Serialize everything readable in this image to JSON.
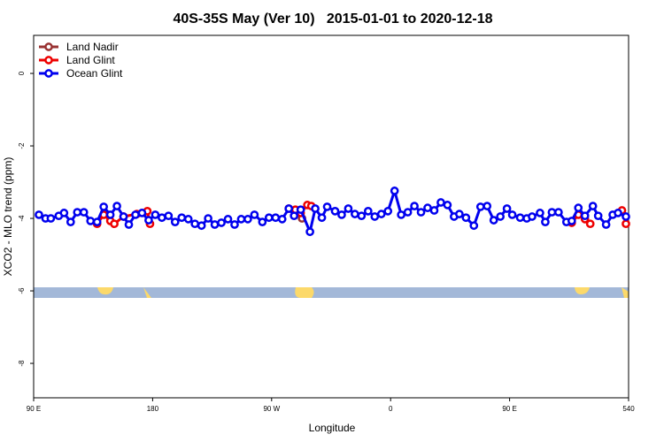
{
  "chart_data": {
    "type": "line",
    "title": "40S-35S May (Ver 10)   2015-01-01 to 2020-12-18",
    "xlabel": "Longitude",
    "ylabel": "XCO2 - MLO trend (ppm)",
    "xlim": [
      90,
      540
    ],
    "ylim": [
      -8.95,
      1.05
    ],
    "xticks": [
      {
        "value": 90,
        "label": "90 E"
      },
      180,
      {
        "value": 270,
        "label": "90 W"
      },
      {
        "value": 360,
        "label": "0"
      },
      {
        "value": 450,
        "label": "90 E"
      },
      540
    ],
    "yticks": [
      0,
      -2,
      -4,
      -6,
      -8
    ],
    "legend": "top-left",
    "series": [
      {
        "name": "Land Nadir",
        "color": "#993333",
        "x": [
          288,
          293
        ],
        "values": [
          -3.76,
          -4.0
        ]
      },
      {
        "name": "Land Glint",
        "color": "#ee0000",
        "x": [
          138,
          143,
          148,
          151,
          158,
          168,
          176,
          178,
          230,
          283,
          288,
          292,
          297,
          300,
          400,
          497,
          502,
          507,
          511,
          520,
          535,
          538
        ],
        "values": [
          -4.15,
          -3.9,
          -4.07,
          -4.15,
          -3.95,
          -3.88,
          -3.8,
          -4.15,
          null,
          -3.73,
          -3.76,
          -3.85,
          -3.63,
          -3.66,
          null,
          -4.12,
          -3.9,
          -4.02,
          -4.15,
          null,
          -3.78,
          -4.15
        ]
      },
      {
        "name": "Ocean Glint",
        "color": "#0000ee",
        "x": [
          94,
          99,
          103,
          109,
          113,
          118,
          123,
          128,
          133,
          138,
          143,
          148,
          153,
          158,
          162,
          167,
          172,
          177,
          182,
          187,
          192,
          197,
          202,
          207,
          212,
          217,
          222,
          227,
          232,
          237,
          242,
          247,
          252,
          257,
          263,
          268,
          273,
          278,
          283,
          287,
          292,
          299,
          303,
          308,
          312,
          318,
          323,
          328,
          333,
          338,
          343,
          348,
          353,
          358,
          363,
          368,
          373,
          378,
          383,
          388,
          393,
          398,
          403,
          408,
          412,
          417,
          423,
          428,
          433,
          438,
          443,
          448,
          452,
          458,
          463,
          467,
          473,
          477,
          482,
          487,
          493,
          497,
          502,
          507,
          513,
          517,
          523,
          528,
          532,
          538
        ],
        "values": [
          -3.9,
          -4.0,
          -4.0,
          -3.93,
          -3.85,
          -4.1,
          -3.83,
          -3.83,
          -4.07,
          -4.1,
          -3.68,
          -3.9,
          -3.66,
          -3.95,
          -4.17,
          -3.9,
          -3.85,
          -4.05,
          -3.9,
          -3.98,
          -3.93,
          -4.1,
          -3.98,
          -4.02,
          -4.15,
          -4.2,
          -4.0,
          -4.17,
          -4.12,
          -4.02,
          -4.17,
          -4.02,
          -4.02,
          -3.9,
          -4.1,
          -3.98,
          -3.98,
          -4.02,
          -3.73,
          -3.93,
          -3.76,
          -4.37,
          -3.73,
          -3.98,
          -3.68,
          -3.8,
          -3.9,
          -3.73,
          -3.88,
          -3.93,
          -3.8,
          -3.95,
          -3.88,
          -3.8,
          -3.24,
          -3.9,
          -3.83,
          -3.66,
          -3.83,
          -3.71,
          -3.78,
          -3.56,
          -3.63,
          -3.95,
          -3.88,
          -3.98,
          -4.2,
          -3.68,
          -3.66,
          -4.05,
          -3.95,
          -3.73,
          -3.9,
          -3.98,
          -4.0,
          -3.95,
          -3.85,
          -4.1,
          -3.83,
          -3.83,
          -4.1,
          -4.07,
          -3.71,
          -3.93,
          -3.66,
          -3.93,
          -4.17,
          -3.9,
          -3.85,
          -3.95
        ]
      }
    ]
  }
}
